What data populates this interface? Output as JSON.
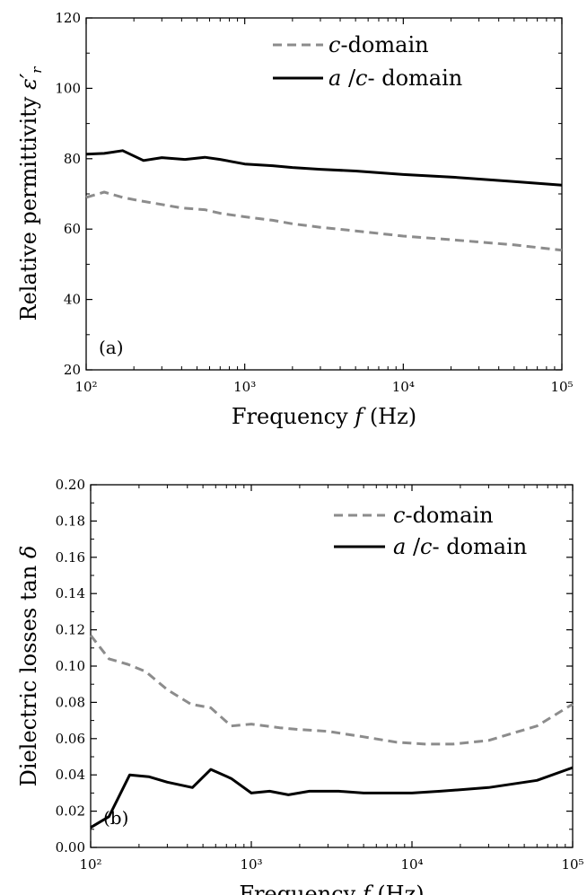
{
  "chart_data": [
    {
      "type": "line",
      "panel_label": "(a)",
      "ylabel": "Relative permittivity ε′r",
      "xlabel": "Frequency f (Hz)",
      "xscale": "log",
      "xlim": [
        100,
        100000
      ],
      "ylim": [
        20,
        120
      ],
      "xticks": [
        "10²",
        "10³",
        "10⁴",
        "10⁵"
      ],
      "yticks": [
        "20",
        "40",
        "60",
        "80",
        "100",
        "120"
      ],
      "legend_position": "top-right",
      "series": [
        {
          "name": "c-domain",
          "color": "#8c8c8c",
          "style": "dashed",
          "x": [
            100,
            130,
            170,
            220,
            300,
            400,
            560,
            700,
            1000,
            1500,
            2000,
            3000,
            5000,
            10000,
            20000,
            50000,
            100000
          ],
          "y": [
            69,
            70.5,
            69,
            68,
            67,
            66,
            65.5,
            64.5,
            63.5,
            62.5,
            61.5,
            60.5,
            59.5,
            58,
            57,
            55.5,
            54
          ]
        },
        {
          "name": "a /c- domain",
          "color": "#000000",
          "style": "solid",
          "x": [
            100,
            130,
            170,
            230,
            300,
            420,
            560,
            700,
            1000,
            1500,
            2000,
            3000,
            5000,
            10000,
            20000,
            50000,
            100000
          ],
          "y": [
            81.3,
            81.5,
            82.3,
            79.5,
            80.3,
            79.8,
            80.4,
            79.8,
            78.5,
            78,
            77.5,
            77,
            76.5,
            75.5,
            74.8,
            73.5,
            72.5
          ]
        }
      ]
    },
    {
      "type": "line",
      "panel_label": "(b)",
      "ylabel": "Dielectric losses tan δ",
      "xlabel": "Frequency f (Hz)",
      "xscale": "log",
      "xlim": [
        100,
        100000
      ],
      "ylim": [
        0,
        0.2
      ],
      "xticks": [
        "10²",
        "10³",
        "10⁴",
        "10⁵"
      ],
      "yticks": [
        "0.00",
        "0.02",
        "0.04",
        "0.06",
        "0.08",
        "0.10",
        "0.12",
        "0.14",
        "0.16",
        "0.18",
        "0.20"
      ],
      "legend_position": "top-right",
      "series": [
        {
          "name": "c-domain",
          "color": "#8c8c8c",
          "style": "dashed",
          "x": [
            100,
            130,
            170,
            220,
            300,
            420,
            560,
            750,
            1000,
            1500,
            2000,
            3000,
            5000,
            8000,
            12000,
            18000,
            30000,
            60000,
            100000
          ],
          "y": [
            0.117,
            0.104,
            0.101,
            0.097,
            0.087,
            0.079,
            0.077,
            0.067,
            0.068,
            0.066,
            0.065,
            0.064,
            0.061,
            0.058,
            0.057,
            0.057,
            0.059,
            0.067,
            0.079
          ]
        },
        {
          "name": "a /c- domain",
          "color": "#000000",
          "style": "solid",
          "x": [
            100,
            130,
            175,
            230,
            300,
            430,
            560,
            750,
            1000,
            1300,
            1700,
            2300,
            3500,
            5000,
            7500,
            10000,
            15000,
            30000,
            60000,
            100000
          ],
          "y": [
            0.011,
            0.017,
            0.04,
            0.039,
            0.036,
            0.033,
            0.043,
            0.038,
            0.03,
            0.031,
            0.029,
            0.031,
            0.031,
            0.03,
            0.03,
            0.03,
            0.031,
            0.033,
            0.037,
            0.044
          ]
        }
      ]
    }
  ]
}
